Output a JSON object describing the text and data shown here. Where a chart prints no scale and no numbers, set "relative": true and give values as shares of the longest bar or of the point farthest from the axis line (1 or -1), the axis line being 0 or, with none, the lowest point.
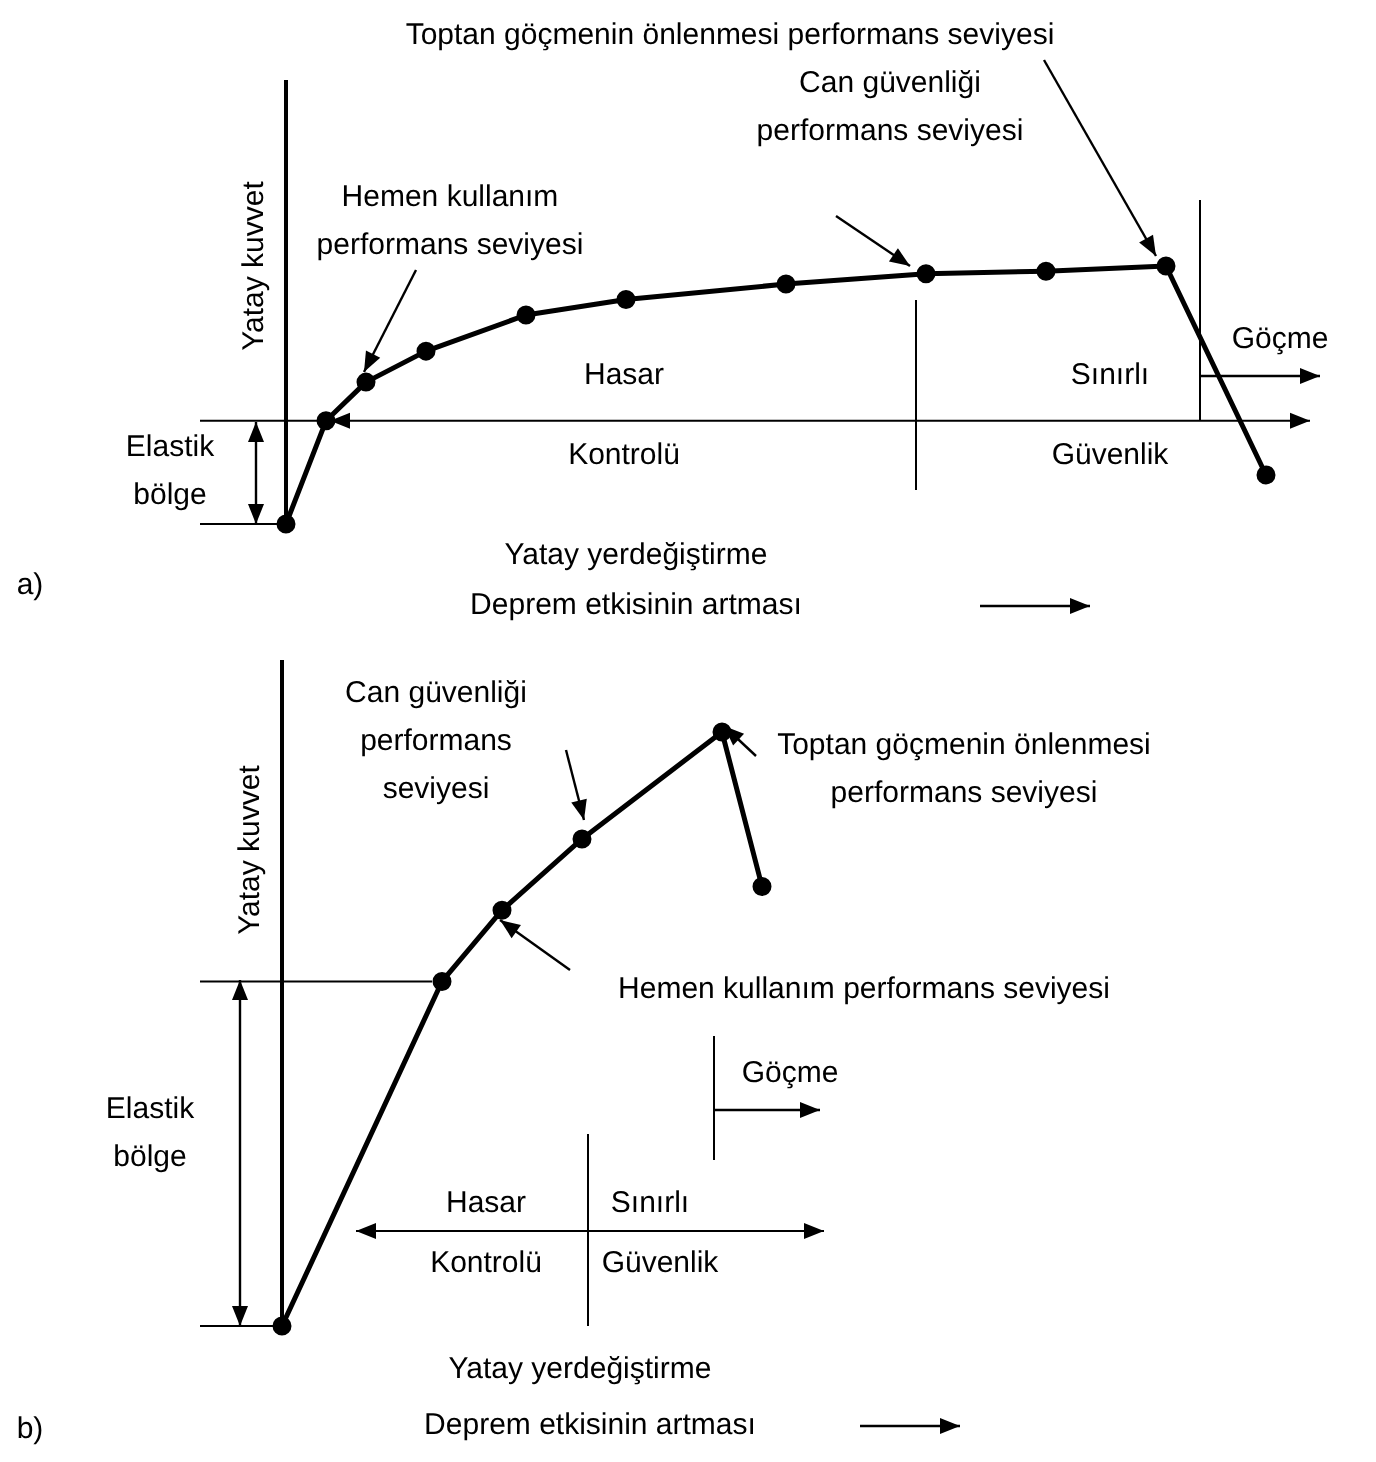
{
  "chart_data": [
    {
      "type": "line",
      "relative": true,
      "marker": "circle",
      "line_style": "solid",
      "legend": false,
      "ylabel": "Yatay kuvvet",
      "xlabel": "Yatay yerdeğiştirme",
      "ref_lines": [
        {
          "axis": "y",
          "value": 0.4
        }
      ],
      "categories": [
        null,
        null,
        null,
        null,
        null,
        null,
        null,
        null,
        null,
        null,
        null,
        null,
        null,
        null,
        null,
        null,
        null,
        null,
        null,
        null,
        null,
        null,
        null,
        null,
        null,
        null,
        null,
        null,
        null,
        null,
        null,
        null,
        null,
        null,
        null,
        null,
        null,
        null,
        null,
        null,
        null,
        null,
        null,
        null,
        null,
        null,
        null,
        null,
        null,
        null
      ],
      "series": [
        {
          "color": "#000000",
          "values": [
            0,
            null,
            0.4,
            null,
            0.55,
            null,
            null,
            0.67,
            null,
            null,
            null,
            null,
            0.81,
            null,
            null,
            null,
            null,
            0.87,
            null,
            null,
            null,
            null,
            null,
            null,
            null,
            0.93,
            null,
            null,
            null,
            null,
            null,
            null,
            0.97,
            null,
            null,
            null,
            null,
            null,
            0.98,
            null,
            null,
            null,
            null,
            null,
            1,
            null,
            null,
            null,
            null,
            0.19
          ]
        }
      ],
      "annotations": [
        "Toptan göçmenin önlenmesi performans seviyesi",
        "Can güvenliği performans seviyesi",
        "Hemen kullanım performans seviyesi",
        "Elastik bölge",
        "Hasar",
        "Kontrolü",
        "Sınırlı",
        "Güvenlik",
        "Göçme",
        "Deprem etkisinin artması",
        "a)"
      ]
    },
    {
      "type": "line",
      "relative": true,
      "marker": "circle",
      "line_style": "solid",
      "legend": false,
      "ylabel": "Yatay kuvvet",
      "xlabel": "Yatay yerdeğiştirme",
      "ref_lines": [
        {
          "axis": "y",
          "value": 0.58
        },
        {
          "axis": "y",
          "value": 0.16
        }
      ],
      "categories": [
        null,
        null,
        null,
        null,
        null,
        null,
        null,
        null,
        null,
        null,
        null,
        null,
        null,
        null,
        null,
        null,
        null,
        null,
        null,
        null,
        null,
        null,
        null,
        null,
        null
      ],
      "series": [
        {
          "color": "#000000",
          "values": [
            0,
            null,
            null,
            null,
            null,
            null,
            null,
            null,
            0.58,
            null,
            null,
            0.7,
            null,
            null,
            null,
            0.82,
            null,
            null,
            null,
            null,
            null,
            null,
            1,
            null,
            0.74
          ]
        }
      ],
      "annotations": [
        "Toptan göçmenin önlenmesi performans seviyesi",
        "Can güvenliği performans seviyesi",
        "Hemen kullanım performans seviyesi",
        "Elastik bölge",
        "Hasar",
        "Kontrolü",
        "Sınırlı",
        "Güvenlik",
        "Göçme",
        "Deprem etkisinin artması",
        "b)"
      ]
    }
  ]
}
